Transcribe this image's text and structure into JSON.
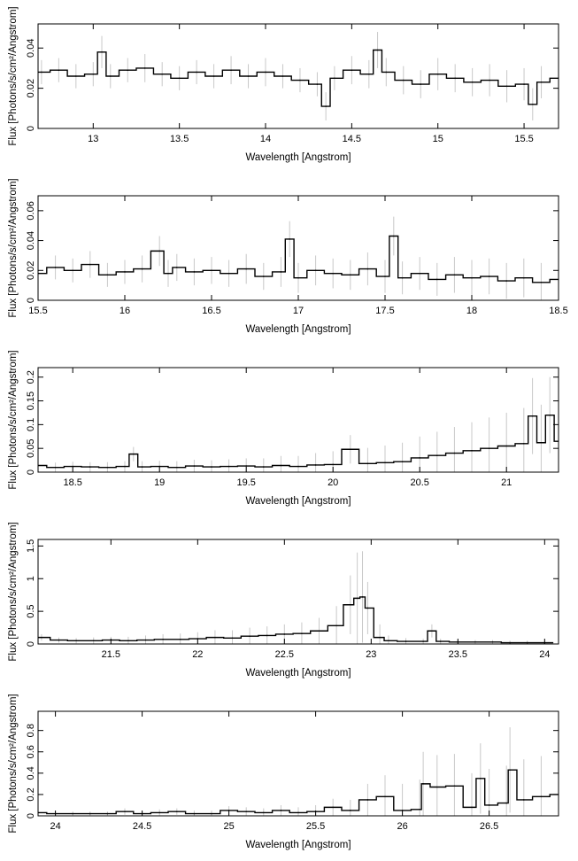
{
  "chart_data": [
    {
      "type": "line",
      "style": "histogram step spectrum with grey error bars",
      "xlabel": "Wavelength [Angstrom]",
      "ylabel": "Flux [Photons/s/cm²/Angstrom]",
      "xlim": [
        12.68,
        15.7
      ],
      "ylim": [
        0,
        0.052
      ],
      "xticks": [
        13,
        13.5,
        14,
        14.5,
        15,
        15.5
      ],
      "xtick_labels": [
        "13",
        "13.5",
        "14",
        "14.5",
        "15",
        "15.5"
      ],
      "yticks": [
        0,
        0.02,
        0.04
      ],
      "ytick_labels": [
        "0",
        "0.02",
        "0.04"
      ],
      "grid": false,
      "series": [
        {
          "x": [
            12.7,
            12.8,
            12.9,
            13.0,
            13.05,
            13.1,
            13.2,
            13.3,
            13.4,
            13.5,
            13.6,
            13.7,
            13.8,
            13.9,
            14.0,
            14.1,
            14.2,
            14.3,
            14.35,
            14.4,
            14.5,
            14.6,
            14.65,
            14.7,
            14.8,
            14.9,
            15.0,
            15.1,
            15.2,
            15.3,
            15.4,
            15.5,
            15.55,
            15.6,
            15.7
          ],
          "y": [
            0.028,
            0.029,
            0.026,
            0.027,
            0.038,
            0.026,
            0.029,
            0.03,
            0.027,
            0.025,
            0.028,
            0.026,
            0.029,
            0.026,
            0.028,
            0.026,
            0.024,
            0.022,
            0.011,
            0.025,
            0.029,
            0.027,
            0.039,
            0.028,
            0.024,
            0.022,
            0.027,
            0.025,
            0.023,
            0.024,
            0.021,
            0.022,
            0.012,
            0.023,
            0.025
          ],
          "err": [
            0.006,
            0.006,
            0.006,
            0.006,
            0.008,
            0.006,
            0.006,
            0.007,
            0.006,
            0.006,
            0.006,
            0.006,
            0.007,
            0.006,
            0.007,
            0.006,
            0.006,
            0.006,
            0.007,
            0.006,
            0.007,
            0.007,
            0.009,
            0.007,
            0.007,
            0.007,
            0.008,
            0.007,
            0.007,
            0.008,
            0.008,
            0.008,
            0.008,
            0.008,
            0.008
          ]
        }
      ]
    },
    {
      "type": "line",
      "style": "histogram step spectrum with grey error bars",
      "xlabel": "Wavelength [Angstrom]",
      "ylabel": "Flux [Photons/s/cm²/Angstrom]",
      "xlim": [
        15.5,
        18.5
      ],
      "ylim": [
        0,
        0.07
      ],
      "xticks": [
        15.5,
        16,
        16.5,
        17,
        17.5,
        18,
        18.5
      ],
      "xtick_labels": [
        "15.5",
        "16",
        "16.5",
        "17",
        "17.5",
        "18",
        "18.5"
      ],
      "yticks": [
        0,
        0.02,
        0.04,
        0.06
      ],
      "ytick_labels": [
        "0",
        "0.02",
        "0.04",
        "0.06"
      ],
      "grid": false,
      "series": [
        {
          "x": [
            15.5,
            15.6,
            15.7,
            15.8,
            15.9,
            16.0,
            16.1,
            16.2,
            16.25,
            16.3,
            16.4,
            16.5,
            16.6,
            16.7,
            16.8,
            16.9,
            16.95,
            17.0,
            17.1,
            17.2,
            17.3,
            17.4,
            17.5,
            17.55,
            17.6,
            17.7,
            17.8,
            17.9,
            18.0,
            18.1,
            18.2,
            18.3,
            18.4,
            18.5
          ],
          "y": [
            0.018,
            0.022,
            0.02,
            0.024,
            0.017,
            0.019,
            0.021,
            0.033,
            0.018,
            0.022,
            0.019,
            0.02,
            0.018,
            0.021,
            0.016,
            0.019,
            0.041,
            0.015,
            0.02,
            0.018,
            0.017,
            0.021,
            0.016,
            0.043,
            0.015,
            0.018,
            0.014,
            0.017,
            0.015,
            0.016,
            0.013,
            0.015,
            0.012,
            0.014
          ],
          "err": [
            0.008,
            0.008,
            0.008,
            0.009,
            0.008,
            0.008,
            0.009,
            0.01,
            0.009,
            0.009,
            0.009,
            0.009,
            0.009,
            0.01,
            0.009,
            0.01,
            0.012,
            0.01,
            0.01,
            0.01,
            0.01,
            0.011,
            0.011,
            0.013,
            0.011,
            0.011,
            0.011,
            0.012,
            0.012,
            0.012,
            0.012,
            0.013,
            0.013,
            0.013
          ]
        }
      ]
    },
    {
      "type": "line",
      "style": "histogram step spectrum with grey error bars",
      "xlabel": "Wavelength [Angstrom]",
      "ylabel": "Flux [Photons/s/cm²/Angstrom]",
      "xlim": [
        18.3,
        21.3
      ],
      "ylim": [
        0,
        0.22
      ],
      "xticks": [
        18.5,
        19,
        19.5,
        20,
        20.5,
        21
      ],
      "xtick_labels": [
        "18.5",
        "19",
        "19.5",
        "20",
        "20.5",
        "21"
      ],
      "yticks": [
        0,
        0.05,
        0.1,
        0.15,
        0.2
      ],
      "ytick_labels": [
        "0",
        "0.05",
        "0.1",
        "0.15",
        "0.2"
      ],
      "grid": false,
      "series": [
        {
          "x": [
            18.3,
            18.4,
            18.5,
            18.6,
            18.7,
            18.8,
            18.85,
            18.9,
            19.0,
            19.1,
            19.2,
            19.3,
            19.4,
            19.5,
            19.6,
            19.7,
            19.8,
            19.9,
            20.0,
            20.1,
            20.2,
            20.3,
            20.4,
            20.5,
            20.6,
            20.7,
            20.8,
            20.9,
            21.0,
            21.1,
            21.15,
            21.2,
            21.25,
            21.3
          ],
          "y": [
            0.014,
            0.01,
            0.012,
            0.011,
            0.01,
            0.012,
            0.038,
            0.011,
            0.012,
            0.01,
            0.013,
            0.011,
            0.012,
            0.013,
            0.011,
            0.014,
            0.012,
            0.015,
            0.016,
            0.048,
            0.018,
            0.02,
            0.022,
            0.03,
            0.035,
            0.04,
            0.045,
            0.05,
            0.055,
            0.06,
            0.118,
            0.062,
            0.12,
            0.065
          ],
          "err": [
            0.01,
            0.01,
            0.01,
            0.01,
            0.011,
            0.011,
            0.015,
            0.012,
            0.012,
            0.013,
            0.013,
            0.014,
            0.015,
            0.016,
            0.018,
            0.02,
            0.022,
            0.025,
            0.028,
            0.03,
            0.033,
            0.036,
            0.04,
            0.045,
            0.05,
            0.055,
            0.06,
            0.065,
            0.07,
            0.075,
            0.08,
            0.08,
            0.08,
            0.08
          ]
        }
      ]
    },
    {
      "type": "line",
      "style": "histogram step spectrum with grey error bars",
      "xlabel": "Wavelength [Angstrom]",
      "ylabel": "Flux [Photons/s/cm²/Angstrom]",
      "xlim": [
        21.08,
        24.08
      ],
      "ylim": [
        0,
        1.6
      ],
      "xticks": [
        21.5,
        22,
        22.5,
        23,
        23.5,
        24
      ],
      "xtick_labels": [
        "21.5",
        "22",
        "22.5",
        "23",
        "23.5",
        "24"
      ],
      "yticks": [
        0,
        0.5,
        1,
        1.5
      ],
      "ytick_labels": [
        "0",
        "0.5",
        "1",
        "1.5"
      ],
      "grid": false,
      "series": [
        {
          "x": [
            21.1,
            21.2,
            21.3,
            21.4,
            21.5,
            21.6,
            21.7,
            21.8,
            21.9,
            22.0,
            22.1,
            22.2,
            22.3,
            22.4,
            22.5,
            22.6,
            22.7,
            22.8,
            22.88,
            22.92,
            22.95,
            22.98,
            23.05,
            23.1,
            23.2,
            23.3,
            23.35,
            23.4,
            23.5,
            23.6,
            23.7,
            23.8,
            23.9,
            24.0
          ],
          "y": [
            0.1,
            0.06,
            0.05,
            0.05,
            0.06,
            0.05,
            0.06,
            0.07,
            0.07,
            0.08,
            0.1,
            0.09,
            0.12,
            0.13,
            0.15,
            0.16,
            0.2,
            0.28,
            0.6,
            0.7,
            0.72,
            0.55,
            0.1,
            0.05,
            0.04,
            0.04,
            0.2,
            0.04,
            0.03,
            0.03,
            0.03,
            0.02,
            0.02,
            0.02
          ],
          "err": [
            0.05,
            0.04,
            0.04,
            0.05,
            0.05,
            0.06,
            0.07,
            0.08,
            0.09,
            0.1,
            0.11,
            0.12,
            0.13,
            0.14,
            0.15,
            0.17,
            0.2,
            0.3,
            0.45,
            0.7,
            0.7,
            0.4,
            0.2,
            0.08,
            0.05,
            0.04,
            0.1,
            0.04,
            0.03,
            0.03,
            0.03,
            0.03,
            0.03,
            0.03
          ]
        }
      ]
    },
    {
      "type": "line",
      "style": "histogram step spectrum with grey error bars",
      "xlabel": "Wavelength [Angstrom]",
      "ylabel": "Flux [Photons/s/cm²/Angstrom]",
      "xlim": [
        23.9,
        26.9
      ],
      "ylim": [
        0,
        0.98
      ],
      "xticks": [
        24,
        24.5,
        25,
        25.5,
        26,
        26.5
      ],
      "xtick_labels": [
        "24",
        "24.5",
        "25",
        "25.5",
        "26",
        "26.5"
      ],
      "yticks": [
        0,
        0.2,
        0.4,
        0.6,
        0.8
      ],
      "ytick_labels": [
        "0",
        "0.2",
        "0.4",
        "0.6",
        "0.8"
      ],
      "grid": false,
      "series": [
        {
          "x": [
            23.9,
            24.0,
            24.1,
            24.2,
            24.3,
            24.4,
            24.5,
            24.6,
            24.7,
            24.8,
            24.9,
            25.0,
            25.1,
            25.2,
            25.3,
            25.4,
            25.5,
            25.6,
            25.7,
            25.8,
            25.9,
            26.0,
            26.1,
            26.12,
            26.2,
            26.3,
            26.4,
            26.45,
            26.5,
            26.6,
            26.62,
            26.7,
            26.8,
            26.9
          ],
          "y": [
            0.03,
            0.02,
            0.02,
            0.02,
            0.02,
            0.04,
            0.02,
            0.03,
            0.04,
            0.02,
            0.02,
            0.05,
            0.04,
            0.03,
            0.05,
            0.03,
            0.04,
            0.08,
            0.05,
            0.15,
            0.18,
            0.05,
            0.06,
            0.3,
            0.27,
            0.28,
            0.08,
            0.35,
            0.1,
            0.12,
            0.43,
            0.15,
            0.18,
            0.2
          ],
          "err": [
            0.03,
            0.02,
            0.02,
            0.02,
            0.02,
            0.03,
            0.02,
            0.03,
            0.03,
            0.03,
            0.03,
            0.04,
            0.04,
            0.04,
            0.05,
            0.05,
            0.06,
            0.08,
            0.1,
            0.15,
            0.2,
            0.25,
            0.28,
            0.3,
            0.3,
            0.3,
            0.32,
            0.33,
            0.34,
            0.35,
            0.4,
            0.38,
            0.38,
            0.38
          ]
        }
      ]
    }
  ],
  "colors": {
    "data_line": "#000000",
    "error_bar": "#c8c8c8",
    "frame": "#000000",
    "background": "#ffffff"
  }
}
